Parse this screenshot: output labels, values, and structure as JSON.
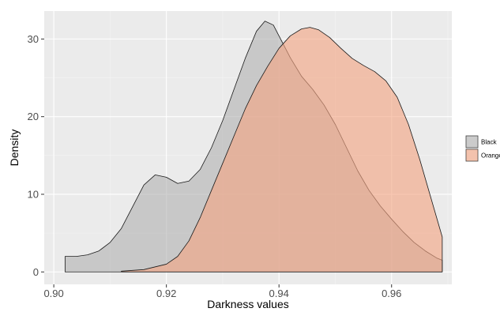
{
  "chart_data": {
    "type": "area",
    "subtype": "density",
    "title": "",
    "xlabel": "Darkness values",
    "ylabel": "Density",
    "xlim": [
      0.9,
      0.97
    ],
    "ylim": [
      0,
      33
    ],
    "x_ticks": [
      0.9,
      0.92,
      0.94,
      0.96
    ],
    "x_tick_labels": [
      "0.90",
      "0.92",
      "0.94",
      "0.96"
    ],
    "y_ticks": [
      0,
      10,
      20,
      30
    ],
    "y_tick_labels": [
      "0",
      "10",
      "20",
      "30"
    ],
    "grid": true,
    "legend_position": "right",
    "series": [
      {
        "name": "Black",
        "color": "#b3b3b3",
        "points": [
          [
            0.902,
            2.0
          ],
          [
            0.904,
            2.0
          ],
          [
            0.906,
            2.2
          ],
          [
            0.908,
            2.7
          ],
          [
            0.91,
            3.8
          ],
          [
            0.912,
            5.6
          ],
          [
            0.914,
            8.4
          ],
          [
            0.916,
            11.2
          ],
          [
            0.918,
            12.5
          ],
          [
            0.92,
            12.2
          ],
          [
            0.922,
            11.4
          ],
          [
            0.924,
            11.7
          ],
          [
            0.926,
            13.2
          ],
          [
            0.928,
            16.0
          ],
          [
            0.93,
            19.5
          ],
          [
            0.932,
            23.5
          ],
          [
            0.934,
            27.5
          ],
          [
            0.936,
            31.0
          ],
          [
            0.9375,
            32.3
          ],
          [
            0.939,
            31.8
          ],
          [
            0.94,
            30.4
          ],
          [
            0.942,
            27.6
          ],
          [
            0.944,
            25.2
          ],
          [
            0.946,
            23.5
          ],
          [
            0.948,
            21.5
          ],
          [
            0.95,
            19.0
          ],
          [
            0.952,
            16.0
          ],
          [
            0.954,
            13.0
          ],
          [
            0.956,
            10.5
          ],
          [
            0.958,
            8.5
          ],
          [
            0.96,
            6.8
          ],
          [
            0.962,
            5.2
          ],
          [
            0.964,
            3.8
          ],
          [
            0.966,
            2.7
          ],
          [
            0.968,
            1.8
          ],
          [
            0.969,
            1.5
          ]
        ]
      },
      {
        "name": "Orange",
        "color": "#f4a582",
        "points": [
          [
            0.912,
            0.1
          ],
          [
            0.916,
            0.3
          ],
          [
            0.92,
            1.0
          ],
          [
            0.922,
            2.0
          ],
          [
            0.924,
            4.0
          ],
          [
            0.926,
            7.0
          ],
          [
            0.928,
            10.5
          ],
          [
            0.93,
            14.0
          ],
          [
            0.932,
            17.5
          ],
          [
            0.934,
            21.0
          ],
          [
            0.936,
            24.0
          ],
          [
            0.938,
            26.5
          ],
          [
            0.94,
            28.8
          ],
          [
            0.942,
            30.4
          ],
          [
            0.944,
            31.3
          ],
          [
            0.9455,
            31.5
          ],
          [
            0.947,
            31.2
          ],
          [
            0.949,
            30.2
          ],
          [
            0.951,
            28.8
          ],
          [
            0.953,
            27.5
          ],
          [
            0.955,
            26.6
          ],
          [
            0.957,
            25.8
          ],
          [
            0.959,
            24.6
          ],
          [
            0.961,
            22.5
          ],
          [
            0.963,
            19.0
          ],
          [
            0.965,
            14.5
          ],
          [
            0.967,
            9.5
          ],
          [
            0.969,
            4.5
          ]
        ]
      }
    ]
  }
}
